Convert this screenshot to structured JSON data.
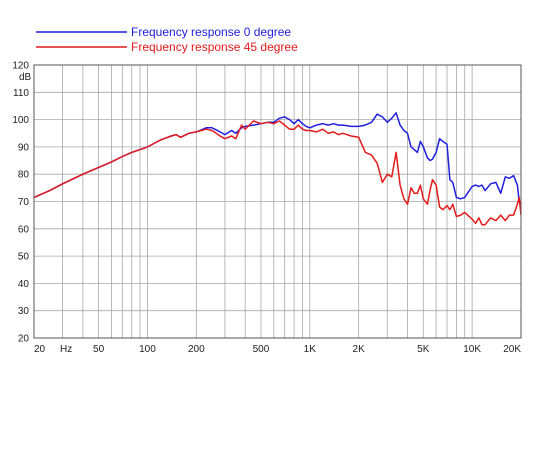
{
  "chart_data": {
    "type": "line",
    "x_scale": "log",
    "xlim": [
      20,
      20000
    ],
    "ylim": [
      20,
      120
    ],
    "y_unit": "dB",
    "x_unit": "Hz",
    "grid": true,
    "legend_position": "top-left",
    "x_tick_labels": [
      {
        "value": 20,
        "label": "20"
      },
      {
        "value": 50,
        "label": "50"
      },
      {
        "value": 100,
        "label": "100"
      },
      {
        "value": 200,
        "label": "200"
      },
      {
        "value": 500,
        "label": "500"
      },
      {
        "value": 1000,
        "label": "1K"
      },
      {
        "value": 2000,
        "label": "2K"
      },
      {
        "value": 5000,
        "label": "5K"
      },
      {
        "value": 10000,
        "label": "10K"
      },
      {
        "value": 20000,
        "label": "20K"
      }
    ],
    "x_gridlines": [
      20,
      30,
      40,
      50,
      60,
      70,
      80,
      90,
      100,
      200,
      300,
      400,
      500,
      600,
      700,
      800,
      900,
      1000,
      2000,
      3000,
      4000,
      5000,
      6000,
      7000,
      8000,
      9000,
      10000,
      20000
    ],
    "y_ticks": [
      20,
      30,
      40,
      50,
      60,
      70,
      80,
      90,
      100,
      110,
      120
    ],
    "series": [
      {
        "name": "Frequency response 0 degree",
        "color": "#1f1fe0",
        "x": [
          20,
          25,
          30,
          40,
          50,
          60,
          70,
          80,
          90,
          100,
          120,
          140,
          150,
          160,
          180,
          200,
          230,
          250,
          280,
          300,
          330,
          350,
          380,
          400,
          450,
          500,
          550,
          600,
          650,
          700,
          750,
          800,
          850,
          900,
          950,
          1000,
          1100,
          1200,
          1300,
          1400,
          1500,
          1600,
          1800,
          2000,
          2200,
          2400,
          2600,
          2800,
          3000,
          3200,
          3400,
          3600,
          3800,
          4000,
          4200,
          4400,
          4600,
          4800,
          5000,
          5300,
          5500,
          5700,
          6000,
          6300,
          6600,
          7000,
          7300,
          7600,
          8000,
          8500,
          9000,
          10000,
          10500,
          11000,
          11500,
          12000,
          13000,
          14000,
          15000,
          16000,
          17000,
          18000,
          19000,
          19500,
          20000
        ],
        "y": [
          71.5,
          74,
          76.5,
          80,
          82.5,
          84.5,
          86.5,
          88,
          89,
          90,
          92.5,
          94,
          94.5,
          93.5,
          95,
          95.5,
          97,
          97,
          95.5,
          94.5,
          96,
          95,
          97,
          97.5,
          98,
          98.5,
          99,
          99,
          100.5,
          101,
          100,
          98.5,
          100,
          98.5,
          97.5,
          97,
          98,
          98.5,
          98,
          98.5,
          98,
          98,
          97.5,
          97.5,
          98,
          99,
          102,
          101,
          99,
          100.5,
          102.5,
          98,
          96,
          95,
          90,
          89,
          88,
          92,
          90,
          86,
          85,
          85.5,
          88,
          93,
          92,
          91,
          78,
          77,
          71.5,
          71,
          71.5,
          75.5,
          76,
          75.5,
          76,
          74,
          76.5,
          77,
          73,
          79,
          78.5,
          79.5,
          76,
          70,
          68
        ]
      },
      {
        "name": "Frequency response 45 degree",
        "color": "#e41b1b",
        "x": [
          20,
          25,
          30,
          40,
          50,
          60,
          70,
          80,
          90,
          100,
          120,
          140,
          150,
          160,
          180,
          200,
          230,
          250,
          280,
          300,
          330,
          350,
          380,
          400,
          450,
          500,
          550,
          600,
          650,
          700,
          750,
          800,
          850,
          900,
          950,
          1000,
          1100,
          1200,
          1300,
          1400,
          1500,
          1600,
          1800,
          2000,
          2200,
          2400,
          2600,
          2800,
          3000,
          3200,
          3400,
          3600,
          3800,
          4000,
          4200,
          4400,
          4600,
          4800,
          5000,
          5300,
          5500,
          5700,
          6000,
          6300,
          6600,
          7000,
          7300,
          7600,
          8000,
          8500,
          9000,
          10000,
          10500,
          11000,
          11500,
          12000,
          13000,
          14000,
          15000,
          16000,
          17000,
          18000,
          19000,
          19500,
          20000
        ],
        "y": [
          71.5,
          74,
          76.5,
          80,
          82.5,
          84.5,
          86.5,
          88,
          89,
          90,
          92.5,
          94,
          94.5,
          93.5,
          95,
          95.5,
          96.5,
          96,
          94,
          93,
          94,
          93,
          98,
          96.5,
          99.5,
          98.5,
          99,
          98.5,
          99.5,
          98,
          96.5,
          96.5,
          98,
          96.5,
          96,
          96,
          95.5,
          96.5,
          95,
          95.5,
          94.5,
          95,
          94,
          93.5,
          88,
          87,
          84,
          77,
          80,
          79,
          88,
          76,
          71,
          69,
          75,
          73,
          73,
          76,
          71,
          69,
          74,
          78,
          76,
          68,
          67,
          68.5,
          67,
          69,
          64.5,
          65,
          66,
          63.5,
          62,
          64,
          61.5,
          61.5,
          64,
          63,
          65,
          63,
          65,
          65,
          69,
          71.5,
          65
        ]
      }
    ]
  }
}
